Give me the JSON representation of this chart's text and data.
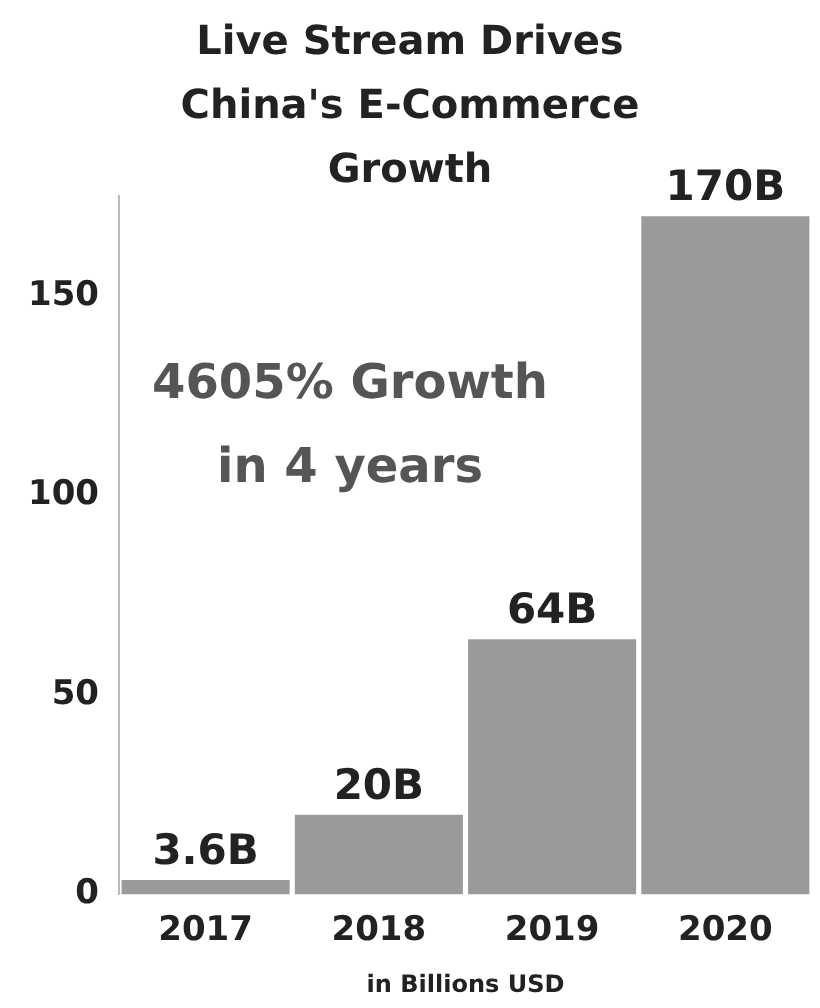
{
  "chart_data": {
    "type": "bar",
    "title": "Live Stream Drives China's E-Commerce Growth",
    "xlabel": "in Billions USD",
    "categories": [
      "2017",
      "2018",
      "2019",
      "2020"
    ],
    "values": [
      3.6,
      20,
      64,
      170
    ],
    "value_labels": [
      "3.6B",
      "20B",
      "64B",
      "170B"
    ],
    "color": "#9a9a9a",
    "ylim": [
      0,
      175
    ],
    "yticks": [
      0,
      50,
      100,
      150
    ],
    "grid": false,
    "legend": false,
    "annotations": [
      "4605% Growth in 4 years"
    ]
  }
}
